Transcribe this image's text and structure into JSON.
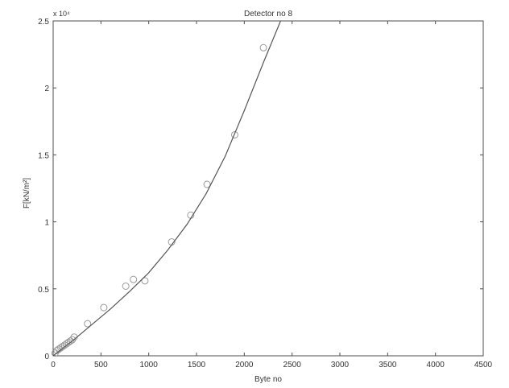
{
  "chart_data": {
    "type": "scatter",
    "title": "Detector no 8",
    "xlabel": "Byte no",
    "ylabel": "F[kN/m²]",
    "yexponent_label": "x 10⁴",
    "xlim": [
      0,
      4500
    ],
    "ylim": [
      0,
      2.5
    ],
    "xticks": [
      0,
      500,
      1000,
      1500,
      2000,
      2500,
      3000,
      3500,
      4000,
      4500
    ],
    "yticks": [
      0,
      0.5,
      1,
      1.5,
      2,
      2.5
    ],
    "xtick_labels": [
      "0",
      "500",
      "1000",
      "1500",
      "2000",
      "2500",
      "3000",
      "3500",
      "4000",
      "4500"
    ],
    "ytick_labels": [
      "0",
      "0.5",
      "1",
      "1.5",
      "2",
      "2.5"
    ],
    "grid": false,
    "series": [
      {
        "type": "scatter",
        "marker": "circle",
        "color": "#9a9a9a",
        "points": [
          [
            20,
            0.02
          ],
          [
            40,
            0.04
          ],
          [
            60,
            0.05
          ],
          [
            80,
            0.06
          ],
          [
            100,
            0.07
          ],
          [
            120,
            0.08
          ],
          [
            140,
            0.09
          ],
          [
            160,
            0.1
          ],
          [
            180,
            0.11
          ],
          [
            200,
            0.12
          ],
          [
            220,
            0.14
          ],
          [
            360,
            0.24
          ],
          [
            530,
            0.36
          ],
          [
            760,
            0.52
          ],
          [
            840,
            0.57
          ],
          [
            960,
            0.56
          ],
          [
            1240,
            0.85
          ],
          [
            1440,
            1.05
          ],
          [
            1610,
            1.28
          ],
          [
            1900,
            1.65
          ],
          [
            2200,
            2.3
          ]
        ]
      },
      {
        "type": "line",
        "color": "#555555",
        "points": [
          [
            0,
            0.0
          ],
          [
            200,
            0.11
          ],
          [
            400,
            0.23
          ],
          [
            600,
            0.35
          ],
          [
            800,
            0.48
          ],
          [
            1000,
            0.62
          ],
          [
            1200,
            0.79
          ],
          [
            1400,
            0.98
          ],
          [
            1600,
            1.21
          ],
          [
            1800,
            1.49
          ],
          [
            2000,
            1.83
          ],
          [
            2200,
            2.19
          ],
          [
            2380,
            2.5
          ]
        ]
      }
    ]
  }
}
